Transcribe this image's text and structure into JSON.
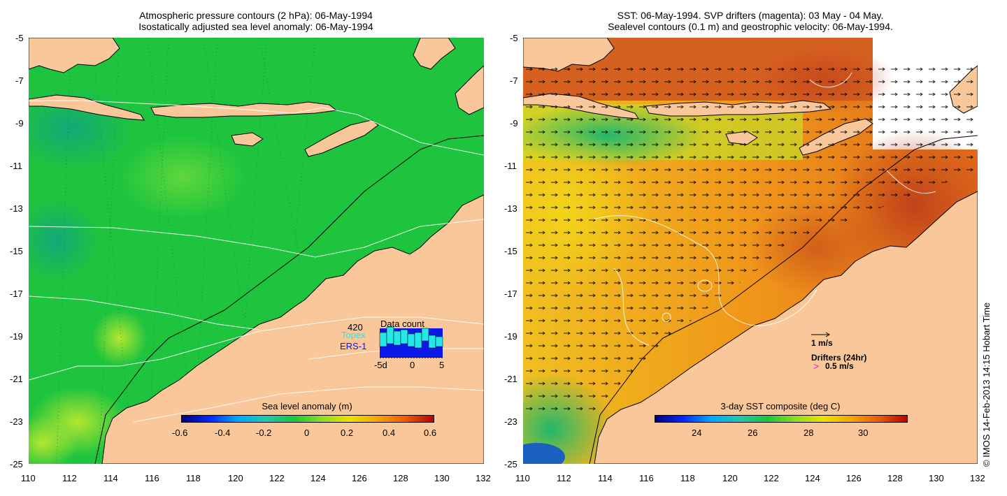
{
  "left_panel": {
    "title_line1": "Atmospheric pressure contours (2 hPa): 06-May-1994",
    "title_line2": "Isostatically adjusted sea level anomaly: 06-May-1994",
    "x_ticks": [
      "110",
      "112",
      "114",
      "116",
      "118",
      "120",
      "122",
      "124",
      "126",
      "128",
      "130",
      "132"
    ],
    "y_ticks": [
      "-5",
      "-7",
      "-9",
      "-11",
      "-13",
      "-15",
      "-17",
      "-19",
      "-21",
      "-23",
      "-25"
    ],
    "colorbar": {
      "title": "Sea level anomaly (m)",
      "labels": [
        "-0.6",
        "-0.4",
        "-0.2",
        "0",
        "0.2",
        "0.4",
        "0.6"
      ],
      "range": [
        -0.6,
        0.6
      ]
    },
    "data_count": {
      "title": "Data count",
      "total": "420",
      "topex_label": "Topex",
      "ers_label": "ERS-1",
      "axis_labels": [
        "-5d",
        "0",
        "5"
      ],
      "topex_color": "#22e8e8",
      "ers_color": "#0a18e8"
    }
  },
  "right_panel": {
    "title_line1": "SST: 06-May-1994. SVP drifters (magenta): 03 May - 04 May.",
    "title_line2": "Sealevel contours (0.1 m) and geostrophic velocity: 06-May-1994.",
    "x_ticks": [
      "110",
      "112",
      "114",
      "116",
      "118",
      "120",
      "122",
      "124",
      "126",
      "128",
      "130",
      "132"
    ],
    "y_ticks": [
      "-5",
      "-7",
      "-9",
      "-11",
      "-13",
      "-15",
      "-17",
      "-19",
      "-21",
      "-23",
      "-25"
    ],
    "colorbar": {
      "title": "3-day SST composite (deg C)",
      "labels": [
        "24",
        "26",
        "28",
        "30"
      ],
      "range": [
        22.5,
        31.5
      ]
    },
    "velocity_legend": {
      "scale_label": "1 m/s",
      "drifters_label": "Drifters (24hr)",
      "drifter_symbol": ">",
      "drifter_scale_label": "0.5 m/s",
      "drifter_color": "#e020e0"
    }
  },
  "credit": "© IMOS 14-Feb-2013 14:15 Hobart Time",
  "colors": {
    "land": "#f9c79a",
    "ocean_green": "#1ec43e",
    "sst_orange": "#f0961a",
    "sst_dark": "#c0421a"
  }
}
